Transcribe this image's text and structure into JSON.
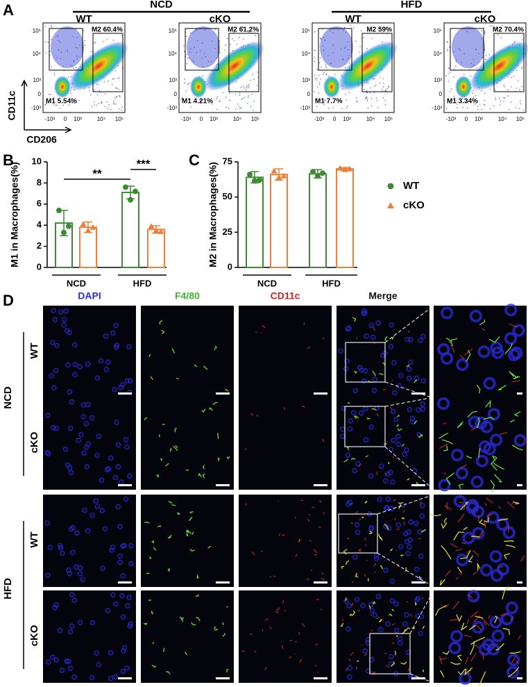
{
  "panel_labels": [
    "A",
    "B",
    "C",
    "D"
  ],
  "flow": {
    "groups": [
      {
        "label": "NCD",
        "subgroups": [
          "WT",
          "cKO"
        ]
      },
      {
        "label": "HFD",
        "subgroups": [
          "WT",
          "cKO"
        ]
      }
    ],
    "plots": [
      {
        "m2": "M2 60.4%",
        "m1": "M1 5.54%"
      },
      {
        "m2": "M2 61.2%",
        "m1": "M1 4.21%"
      },
      {
        "m2": "M2 59%",
        "m1": "M1 7.7%"
      },
      {
        "m2": "M2 70.4%",
        "m1": "M1 3.34%"
      }
    ],
    "y_ticks": [
      "10⁵",
      "10⁴",
      "10³",
      "0",
      "-10³"
    ],
    "x_ticks": [
      "-10³",
      "0",
      "10³",
      "10⁴",
      "10⁵"
    ],
    "y_label": "CD11c",
    "x_label": "CD206"
  },
  "chart_data": [
    {
      "type": "bar",
      "y_label": "M1 in Macrophages(%)",
      "categories": [
        "NCD",
        "HFD"
      ],
      "series": [
        {
          "color": "#3c8a32",
          "marker": "circle",
          "values": [
            4.2,
            7.1
          ],
          "errors": [
            1.2,
            0.6
          ],
          "points": [
            [
              5.4,
              3.3,
              3.9
            ],
            [
              7.6,
              6.4,
              7.2
            ]
          ]
        },
        {
          "color": "#e8803a",
          "marker": "triangle",
          "values": [
            3.8,
            3.6
          ],
          "errors": [
            0.5,
            0.35
          ],
          "points": [
            [
              4.1,
              3.5,
              3.8
            ],
            [
              3.9,
              3.5,
              3.4
            ]
          ]
        }
      ],
      "significance": [
        "**",
        "***"
      ],
      "ylim": [
        0,
        10
      ],
      "yticks": [
        0,
        2,
        4,
        6,
        8,
        10
      ]
    },
    {
      "type": "bar",
      "y_label": "M2 in Macrophages(%)",
      "categories": [
        "NCD",
        "HFD"
      ],
      "series": [
        {
          "name": "WT",
          "color": "#3c8a32",
          "marker": "circle",
          "values": [
            64,
            66.5
          ],
          "errors": [
            4,
            3
          ],
          "points": [
            [
              66,
              61.5,
              62
            ],
            [
              68,
              65,
              67
            ]
          ]
        },
        {
          "name": "cKO",
          "color": "#e8803a",
          "marker": "triangle",
          "values": [
            66,
            70
          ],
          "errors": [
            4,
            1
          ],
          "points": [
            [
              68.5,
              64,
              65
            ],
            [
              70.5,
              69.5,
              70
            ]
          ]
        }
      ],
      "ylim": [
        0,
        75
      ],
      "yticks": [
        0,
        25,
        50,
        75
      ]
    }
  ],
  "image_panel": {
    "columns": [
      {
        "label": "DAPI",
        "color": "#2b2bdc"
      },
      {
        "label": "F4/80",
        "color": "#3cb82c"
      },
      {
        "label": "CD11c",
        "color": "#d42222"
      },
      {
        "label": "Merge",
        "color": "#111111"
      }
    ],
    "groups": [
      {
        "label": "NCD",
        "rows": [
          "WT",
          "cKO"
        ]
      },
      {
        "label": "HFD",
        "rows": [
          "WT",
          "cKO"
        ]
      }
    ]
  }
}
